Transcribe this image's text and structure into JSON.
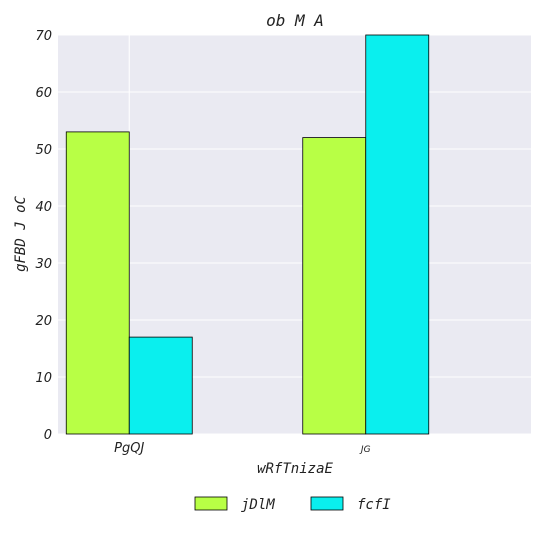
{
  "chart_data": {
    "type": "bar",
    "title": "ob M A",
    "xlabel": "wRfTnizaE",
    "ylabel": "gFBD J oC",
    "categories": [
      "PgQJ",
      "JG"
    ],
    "series": [
      {
        "name": "jDlM",
        "values": [
          53,
          52
        ],
        "color": "#b8ff45"
      },
      {
        "name": "fcfI",
        "values": [
          17,
          70
        ],
        "color": "#0aefee"
      }
    ],
    "ylim": [
      0,
      70
    ],
    "yticks": [
      0,
      10,
      20,
      30,
      40,
      50,
      60,
      70
    ],
    "grid": true,
    "legend_position": "bottom",
    "plot_background": "#eaeaf2"
  }
}
